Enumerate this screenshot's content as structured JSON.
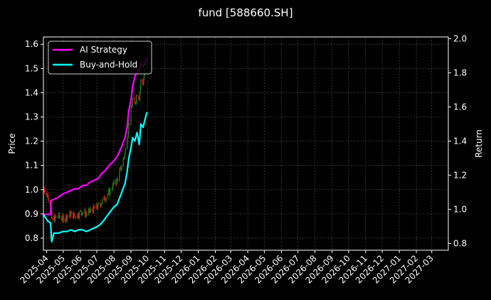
{
  "chart_data": {
    "type": "line",
    "title": "fund [588660.SH]",
    "xlabel": "",
    "ylabel": "Price",
    "y2label": "Return",
    "grid": true,
    "legend_position": "top-left",
    "colors": {
      "background": "#000000",
      "text": "#ffffff",
      "grid": "#555555",
      "candle_up": "#1f7a1f",
      "candle_down": "#e01010"
    },
    "x_ticks": [
      "2025-04",
      "2025-05",
      "2025-06",
      "2025-07",
      "2025-08",
      "2025-09",
      "2025-10",
      "2025-11",
      "2025-12",
      "2026-01",
      "2026-02",
      "2026-03",
      "2026-04",
      "2026-05",
      "2026-06",
      "2026-07",
      "2026-08",
      "2026-09",
      "2026-10",
      "2026-11",
      "2026-12",
      "2027-01",
      "2027-02",
      "2027-03"
    ],
    "xlim": [
      "2025-03-26",
      "2027-03-31"
    ],
    "y_left_ticks": [
      0.8,
      0.9,
      1.0,
      1.1,
      1.2,
      1.3,
      1.4,
      1.5,
      1.6
    ],
    "ylim_left": [
      0.75,
      1.63
    ],
    "y_right_ticks": [
      0.8,
      1.0,
      1.2,
      1.4,
      1.6,
      1.8,
      2.0
    ],
    "ylim_right": [
      0.76,
      2.01
    ],
    "series": [
      {
        "name": "AI Strategy",
        "axis": "right",
        "color": "#ff00ff",
        "points": [
          [
            "2025-03-26",
            0.97
          ],
          [
            "2025-04-01",
            0.97
          ],
          [
            "2025-04-08",
            0.97
          ],
          [
            "2025-04-09",
            1.05
          ],
          [
            "2025-04-15",
            1.06
          ],
          [
            "2025-04-22",
            1.07
          ],
          [
            "2025-04-30",
            1.09
          ],
          [
            "2025-05-08",
            1.1
          ],
          [
            "2025-05-15",
            1.11
          ],
          [
            "2025-05-22",
            1.12
          ],
          [
            "2025-05-29",
            1.12
          ],
          [
            "2025-06-05",
            1.14
          ],
          [
            "2025-06-12",
            1.14
          ],
          [
            "2025-06-19",
            1.16
          ],
          [
            "2025-06-26",
            1.17
          ],
          [
            "2025-07-03",
            1.18
          ],
          [
            "2025-07-10",
            1.21
          ],
          [
            "2025-07-17",
            1.23
          ],
          [
            "2025-07-24",
            1.26
          ],
          [
            "2025-07-31",
            1.28
          ],
          [
            "2025-08-07",
            1.31
          ],
          [
            "2025-08-14",
            1.36
          ],
          [
            "2025-08-21",
            1.42
          ],
          [
            "2025-08-25",
            1.48
          ],
          [
            "2025-08-28",
            1.58
          ],
          [
            "2025-09-01",
            1.64
          ],
          [
            "2025-09-04",
            1.72
          ],
          [
            "2025-09-08",
            1.78
          ],
          [
            "2025-09-12",
            1.8
          ],
          [
            "2025-09-16",
            1.82
          ],
          [
            "2025-09-19",
            1.86
          ],
          [
            "2025-09-23",
            1.84
          ],
          [
            "2025-09-26",
            1.85
          ],
          [
            "2025-09-30",
            1.89
          ]
        ]
      },
      {
        "name": "Buy-and-Hold",
        "axis": "right",
        "color": "#00ffff",
        "points": [
          [
            "2025-03-26",
            0.97
          ],
          [
            "2025-04-03",
            0.93
          ],
          [
            "2025-04-08",
            0.92
          ],
          [
            "2025-04-10",
            0.81
          ],
          [
            "2025-04-14",
            0.86
          ],
          [
            "2025-04-22",
            0.86
          ],
          [
            "2025-05-01",
            0.87
          ],
          [
            "2025-05-08",
            0.87
          ],
          [
            "2025-05-15",
            0.88
          ],
          [
            "2025-05-22",
            0.87
          ],
          [
            "2025-05-29",
            0.88
          ],
          [
            "2025-06-05",
            0.88
          ],
          [
            "2025-06-12",
            0.87
          ],
          [
            "2025-06-19",
            0.88
          ],
          [
            "2025-06-26",
            0.89
          ],
          [
            "2025-07-03",
            0.9
          ],
          [
            "2025-07-10",
            0.92
          ],
          [
            "2025-07-17",
            0.95
          ],
          [
            "2025-07-24",
            0.98
          ],
          [
            "2025-07-31",
            1.01
          ],
          [
            "2025-08-07",
            1.03
          ],
          [
            "2025-08-14",
            1.09
          ],
          [
            "2025-08-21",
            1.15
          ],
          [
            "2025-08-25",
            1.22
          ],
          [
            "2025-08-28",
            1.3
          ],
          [
            "2025-09-01",
            1.36
          ],
          [
            "2025-09-04",
            1.42
          ],
          [
            "2025-09-08",
            1.4
          ],
          [
            "2025-09-12",
            1.45
          ],
          [
            "2025-09-16",
            1.38
          ],
          [
            "2025-09-19",
            1.5
          ],
          [
            "2025-09-23",
            1.48
          ],
          [
            "2025-09-26",
            1.52
          ],
          [
            "2025-09-30",
            1.57
          ]
        ]
      },
      {
        "name": "",
        "axis": "left",
        "type": "candlestick",
        "close_points": [
          [
            "2025-03-26",
            1.01
          ],
          [
            "2025-04-01",
            0.98
          ],
          [
            "2025-04-08",
            0.95
          ],
          [
            "2025-04-10",
            0.87
          ],
          [
            "2025-04-15",
            0.88
          ],
          [
            "2025-04-22",
            0.89
          ],
          [
            "2025-04-30",
            0.88
          ],
          [
            "2025-05-08",
            0.89
          ],
          [
            "2025-05-15",
            0.9
          ],
          [
            "2025-05-22",
            0.89
          ],
          [
            "2025-05-29",
            0.9
          ],
          [
            "2025-06-05",
            0.91
          ],
          [
            "2025-06-12",
            0.9
          ],
          [
            "2025-06-19",
            0.91
          ],
          [
            "2025-06-26",
            0.92
          ],
          [
            "2025-07-03",
            0.93
          ],
          [
            "2025-07-10",
            0.95
          ],
          [
            "2025-07-17",
            0.97
          ],
          [
            "2025-07-24",
            0.99
          ],
          [
            "2025-07-31",
            1.02
          ],
          [
            "2025-08-07",
            1.04
          ],
          [
            "2025-08-14",
            1.09
          ],
          [
            "2025-08-21",
            1.15
          ],
          [
            "2025-08-25",
            1.21
          ],
          [
            "2025-08-28",
            1.27
          ],
          [
            "2025-09-01",
            1.32
          ],
          [
            "2025-09-04",
            1.37
          ],
          [
            "2025-09-08",
            1.35
          ],
          [
            "2025-09-12",
            1.4
          ],
          [
            "2025-09-16",
            1.38
          ],
          [
            "2025-09-19",
            1.45
          ],
          [
            "2025-09-23",
            1.44
          ],
          [
            "2025-09-26",
            1.49
          ],
          [
            "2025-09-30",
            1.53
          ]
        ]
      }
    ]
  }
}
